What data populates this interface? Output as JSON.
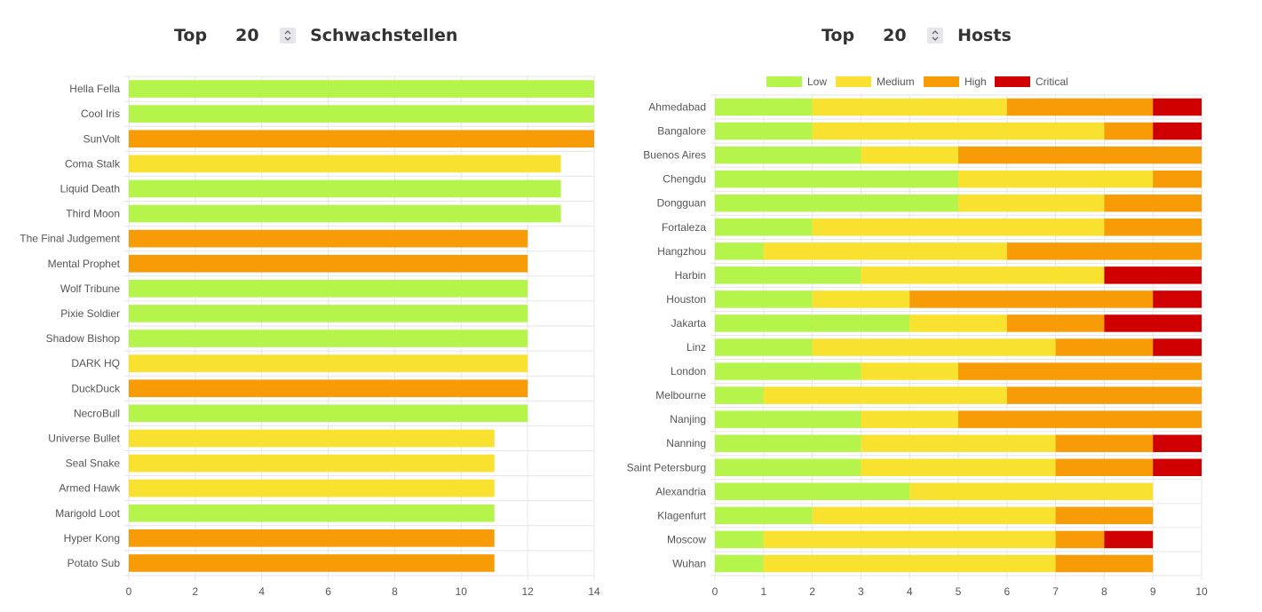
{
  "panels": [
    {
      "header": {
        "top_label": "Top",
        "top_value": "20",
        "title": "Schwachstellen"
      },
      "chart_data": {
        "type": "bar",
        "orientation": "horizontal",
        "title": "Top 20 Schwachstellen",
        "categories": [
          "Hella Fella",
          "Cool Iris",
          "SunVolt",
          "Coma Stalk",
          "Liquid Death",
          "Third Moon",
          "The Final Judgement",
          "Mental Prophet",
          "Wolf Tribune",
          "Pixie Soldier",
          "Shadow Bishop",
          "DARK HQ",
          "DuckDuck",
          "NecroBull",
          "Universe Bullet",
          "Seal Snake",
          "Armed Hawk",
          "Marigold Loot",
          "Hyper Kong",
          "Potato Sub"
        ],
        "values": [
          14,
          14,
          14,
          13,
          13,
          13,
          12,
          12,
          12,
          12,
          12,
          12,
          12,
          12,
          11,
          11,
          11,
          11,
          11,
          11
        ],
        "severity": [
          "Low",
          "Low",
          "High",
          "Medium",
          "Low",
          "Low",
          "High",
          "High",
          "Low",
          "Low",
          "Low",
          "Medium",
          "High",
          "Low",
          "Medium",
          "Medium",
          "Medium",
          "Low",
          "High",
          "High"
        ],
        "xlim": [
          0,
          14
        ],
        "xticks": [
          0,
          2,
          4,
          6,
          8,
          10,
          12,
          14
        ],
        "grid": true
      }
    },
    {
      "header": {
        "top_label": "Top",
        "top_value": "20",
        "title": "Hosts"
      },
      "chart_data": {
        "type": "bar",
        "orientation": "horizontal",
        "stacked": true,
        "title": "Top 20 Hosts",
        "categories": [
          "Ahmedabad",
          "Bangalore",
          "Buenos Aires",
          "Chengdu",
          "Dongguan",
          "Fortaleza",
          "Hangzhou",
          "Harbin",
          "Houston",
          "Jakarta",
          "Linz",
          "London",
          "Melbourne",
          "Nanjing",
          "Nanning",
          "Saint Petersburg",
          "Alexandria",
          "Klagenfurt",
          "Moscow",
          "Wuhan"
        ],
        "series": [
          {
            "name": "Low",
            "values": [
              2,
              2,
              3,
              5,
              5,
              2,
              1,
              3,
              2,
              4,
              2,
              3,
              1,
              3,
              3,
              3,
              4,
              2,
              1,
              1
            ]
          },
          {
            "name": "Medium",
            "values": [
              4,
              6,
              2,
              4,
              3,
              6,
              5,
              5,
              2,
              2,
              5,
              2,
              5,
              2,
              4,
              4,
              5,
              5,
              6,
              6
            ]
          },
          {
            "name": "High",
            "values": [
              3,
              1,
              5,
              1,
              2,
              2,
              4,
              0,
              5,
              2,
              2,
              5,
              4,
              5,
              2,
              2,
              0,
              2,
              1,
              2
            ]
          },
          {
            "name": "Critical",
            "values": [
              1,
              1,
              0,
              0,
              0,
              0,
              0,
              2,
              1,
              2,
              1,
              0,
              0,
              0,
              1,
              1,
              0,
              0,
              1,
              0
            ]
          }
        ],
        "legend": "top-center",
        "xlim": [
          0,
          10
        ],
        "xticks": [
          0,
          1,
          2,
          3,
          4,
          5,
          6,
          7,
          8,
          9,
          10
        ],
        "grid": true
      }
    }
  ],
  "colors": {
    "Low": "#b5f54b",
    "Medium": "#f9e22f",
    "High": "#f79b07",
    "Critical": "#d10000",
    "grid": "#e6e6e6",
    "axis_text": "#555555"
  }
}
